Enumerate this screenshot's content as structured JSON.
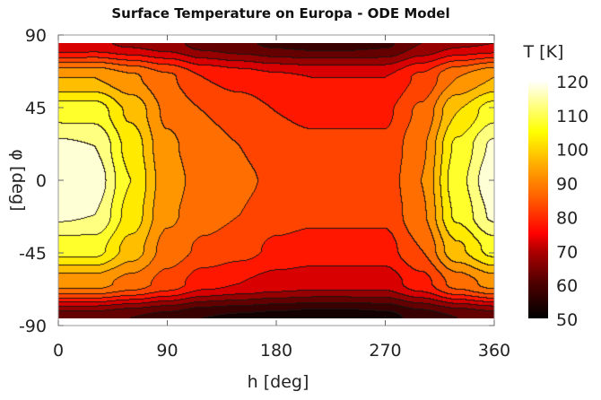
{
  "chart_data": {
    "type": "heatmap",
    "subtype": "filled-contour",
    "title": "Surface Temperature on Europa - ODE Model",
    "xlabel": "h [deg]",
    "ylabel": "φ [deg]",
    "colorbar_label": "T [K]",
    "xlim": [
      0,
      360
    ],
    "ylim": [
      -90,
      90
    ],
    "xticks": [
      0,
      90,
      180,
      270,
      360
    ],
    "yticks": [
      -90,
      -45,
      0,
      45,
      90
    ],
    "colorbar_ticks": [
      50,
      60,
      70,
      80,
      90,
      100,
      110,
      120
    ],
    "clim": [
      50,
      120
    ],
    "contour_step": 5,
    "colormap": "hot",
    "x": [
      0,
      30,
      60,
      90,
      120,
      150,
      180,
      210,
      240,
      270,
      300,
      330,
      360
    ],
    "y": [
      80,
      60,
      40,
      20,
      0,
      -20,
      -40,
      -60,
      -80
    ],
    "z": [
      [
        70,
        71,
        69,
        67,
        63,
        61,
        59,
        58,
        58,
        59,
        65,
        69,
        70
      ],
      [
        95,
        95,
        91,
        86,
        80,
        78,
        76,
        75,
        75,
        75,
        81,
        90,
        95
      ],
      [
        108,
        108,
        99,
        89,
        85,
        83,
        80,
        79,
        79,
        79,
        86,
        100,
        108
      ],
      [
        116,
        115,
        103,
        91,
        87,
        85,
        82,
        81,
        81,
        81,
        89,
        106,
        116
      ],
      [
        119,
        118,
        105,
        92,
        88,
        86,
        84,
        82,
        82,
        82,
        90,
        108,
        119
      ],
      [
        116,
        115,
        103,
        91,
        87,
        85,
        82,
        81,
        81,
        81,
        89,
        106,
        116
      ],
      [
        107,
        107,
        98,
        88,
        84,
        82,
        79,
        78,
        78,
        78,
        85,
        99,
        107
      ],
      [
        92,
        92,
        88,
        83,
        77,
        75,
        73,
        72,
        72,
        72,
        78,
        87,
        92
      ],
      [
        62,
        62,
        60,
        58,
        55,
        54,
        53,
        52,
        52,
        53,
        57,
        60,
        62
      ]
    ]
  }
}
